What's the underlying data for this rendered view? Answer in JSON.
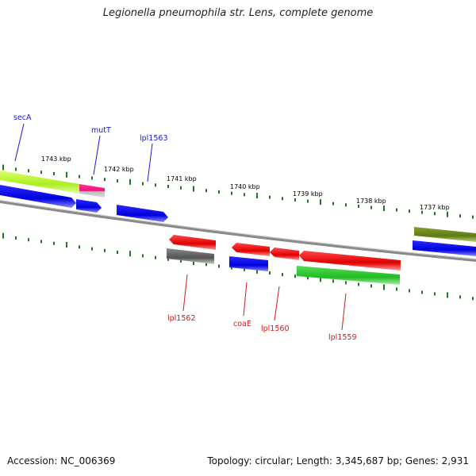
{
  "title": "Legionella pneumophila str. Lens, complete genome",
  "footer": {
    "accession": "Accession: NC_006369",
    "summary": "Topology: circular; Length: 3,345,687 bp; Genes: 2,931"
  },
  "colors": {
    "tick": "#1a7a1a",
    "forward_label": "#1a1acc",
    "reverse_label": "#cc1a1a",
    "backbone": "#888888"
  },
  "scale_labels": [
    "1743 kbp",
    "1742 kbp",
    "1741 kbp",
    "1740 kbp",
    "1739 kbp",
    "1738 kbp",
    "1737 kbp"
  ],
  "gene_labels": {
    "forward": [
      "secA",
      "mutT",
      "lpl1563"
    ],
    "reverse": [
      "lpl1562",
      "coaE",
      "lpl1560",
      "lpl1559"
    ]
  }
}
